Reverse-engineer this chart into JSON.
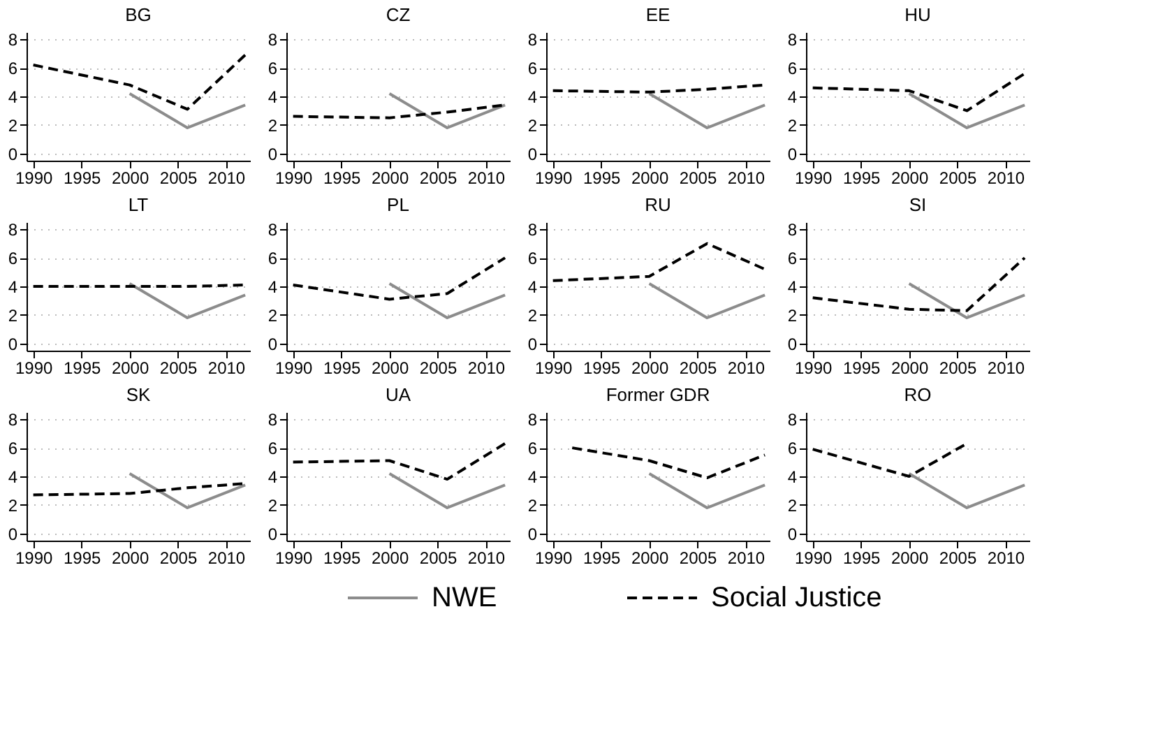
{
  "chart_data": [
    {
      "type": "line",
      "title": "BG",
      "legend": "bottom",
      "grid": "y",
      "xlim": [
        1989.3,
        2012.5
      ],
      "xticks": [
        1990,
        1995,
        2000,
        2005,
        2010
      ],
      "ylim": [
        -0.5,
        8.5
      ],
      "yticks": [
        0,
        2,
        4,
        6,
        8
      ],
      "series": [
        {
          "name": "NWE",
          "color": "#8c8c8c",
          "line_style": "solid",
          "x": [
            2000,
            2006,
            2012
          ],
          "values": [
            4.2,
            1.8,
            3.4
          ]
        },
        {
          "name": "Social Justice",
          "color": "#000000",
          "line_style": "dashed",
          "x": [
            1990,
            2000,
            2006,
            2012
          ],
          "values": [
            6.2,
            4.8,
            3.1,
            6.9
          ]
        }
      ]
    },
    {
      "type": "line",
      "title": "CZ",
      "grid": "y",
      "xlim": [
        1989.3,
        2012.5
      ],
      "xticks": [
        1990,
        1995,
        2000,
        2005,
        2010
      ],
      "ylim": [
        -0.5,
        8.5
      ],
      "yticks": [
        0,
        2,
        4,
        6,
        8
      ],
      "series": [
        {
          "color": "#8c8c8c",
          "line_style": "solid",
          "x": [
            2000,
            2006,
            2012
          ],
          "values": [
            4.2,
            1.8,
            3.4
          ]
        },
        {
          "color": "#000000",
          "line_style": "dashed",
          "x": [
            1990,
            2000,
            2006,
            2012
          ],
          "values": [
            2.6,
            2.5,
            2.9,
            3.4
          ]
        }
      ]
    },
    {
      "type": "line",
      "title": "EE",
      "grid": "y",
      "xlim": [
        1989.3,
        2012.5
      ],
      "xticks": [
        1990,
        1995,
        2000,
        2005,
        2010
      ],
      "ylim": [
        -0.5,
        8.5
      ],
      "yticks": [
        0,
        2,
        4,
        6,
        8
      ],
      "series": [
        {
          "color": "#8c8c8c",
          "line_style": "solid",
          "x": [
            2000,
            2006,
            2012
          ],
          "values": [
            4.2,
            1.8,
            3.4
          ]
        },
        {
          "color": "#000000",
          "line_style": "dashed",
          "x": [
            1990,
            2000,
            2006,
            2012
          ],
          "values": [
            4.4,
            4.3,
            4.5,
            4.8
          ]
        }
      ]
    },
    {
      "type": "line",
      "title": "HU",
      "grid": "y",
      "xlim": [
        1989.3,
        2012.5
      ],
      "xticks": [
        1990,
        1995,
        2000,
        2005,
        2010
      ],
      "ylim": [
        -0.5,
        8.5
      ],
      "yticks": [
        0,
        2,
        4,
        6,
        8
      ],
      "series": [
        {
          "color": "#8c8c8c",
          "line_style": "solid",
          "x": [
            2000,
            2006,
            2012
          ],
          "values": [
            4.2,
            1.8,
            3.4
          ]
        },
        {
          "color": "#000000",
          "line_style": "dashed",
          "x": [
            1990,
            2000,
            2006,
            2012
          ],
          "values": [
            4.6,
            4.4,
            3.0,
            5.6
          ]
        }
      ]
    },
    {
      "type": "line",
      "title": "LT",
      "grid": "y",
      "xlim": [
        1989.3,
        2012.5
      ],
      "xticks": [
        1990,
        1995,
        2000,
        2005,
        2010
      ],
      "ylim": [
        -0.5,
        8.5
      ],
      "yticks": [
        0,
        2,
        4,
        6,
        8
      ],
      "series": [
        {
          "color": "#8c8c8c",
          "line_style": "solid",
          "x": [
            2000,
            2006,
            2012
          ],
          "values": [
            4.2,
            1.8,
            3.4
          ]
        },
        {
          "color": "#000000",
          "line_style": "dashed",
          "x": [
            1990,
            2000,
            2006,
            2012
          ],
          "values": [
            4.0,
            4.0,
            4.0,
            4.1
          ]
        }
      ]
    },
    {
      "type": "line",
      "title": "PL",
      "grid": "y",
      "xlim": [
        1989.3,
        2012.5
      ],
      "xticks": [
        1990,
        1995,
        2000,
        2005,
        2010
      ],
      "ylim": [
        -0.5,
        8.5
      ],
      "yticks": [
        0,
        2,
        4,
        6,
        8
      ],
      "series": [
        {
          "color": "#8c8c8c",
          "line_style": "solid",
          "x": [
            2000,
            2006,
            2012
          ],
          "values": [
            4.2,
            1.8,
            3.4
          ]
        },
        {
          "color": "#000000",
          "line_style": "dashed",
          "x": [
            1990,
            2000,
            2006,
            2012
          ],
          "values": [
            4.1,
            3.1,
            3.5,
            6.0
          ]
        }
      ]
    },
    {
      "type": "line",
      "title": "RU",
      "grid": "y",
      "xlim": [
        1989.3,
        2012.5
      ],
      "xticks": [
        1990,
        1995,
        2000,
        2005,
        2010
      ],
      "ylim": [
        -0.5,
        8.5
      ],
      "yticks": [
        0,
        2,
        4,
        6,
        8
      ],
      "series": [
        {
          "color": "#8c8c8c",
          "line_style": "solid",
          "x": [
            2000,
            2006,
            2012
          ],
          "values": [
            4.2,
            1.8,
            3.4
          ]
        },
        {
          "color": "#000000",
          "line_style": "dashed",
          "x": [
            1990,
            2000,
            2006,
            2012
          ],
          "values": [
            4.4,
            4.7,
            7.0,
            5.2
          ]
        }
      ]
    },
    {
      "type": "line",
      "title": "SI",
      "grid": "y",
      "xlim": [
        1989.3,
        2012.5
      ],
      "xticks": [
        1990,
        1995,
        2000,
        2005,
        2010
      ],
      "ylim": [
        -0.5,
        8.5
      ],
      "yticks": [
        0,
        2,
        4,
        6,
        8
      ],
      "series": [
        {
          "color": "#8c8c8c",
          "line_style": "solid",
          "x": [
            2000,
            2006,
            2012
          ],
          "values": [
            4.2,
            1.8,
            3.4
          ]
        },
        {
          "color": "#000000",
          "line_style": "dashed",
          "x": [
            1990,
            2000,
            2006,
            2012
          ],
          "values": [
            3.2,
            2.4,
            2.3,
            6.0
          ]
        }
      ]
    },
    {
      "type": "line",
      "title": "SK",
      "grid": "y",
      "xlim": [
        1989.3,
        2012.5
      ],
      "xticks": [
        1990,
        1995,
        2000,
        2005,
        2010
      ],
      "ylim": [
        -0.5,
        8.5
      ],
      "yticks": [
        0,
        2,
        4,
        6,
        8
      ],
      "series": [
        {
          "color": "#8c8c8c",
          "line_style": "solid",
          "x": [
            2000,
            2006,
            2012
          ],
          "values": [
            4.2,
            1.8,
            3.4
          ]
        },
        {
          "color": "#000000",
          "line_style": "dashed",
          "x": [
            1990,
            2000,
            2006,
            2012
          ],
          "values": [
            2.7,
            2.8,
            3.2,
            3.5
          ]
        }
      ]
    },
    {
      "type": "line",
      "title": "UA",
      "grid": "y",
      "xlim": [
        1989.3,
        2012.5
      ],
      "xticks": [
        1990,
        1995,
        2000,
        2005,
        2010
      ],
      "ylim": [
        -0.5,
        8.5
      ],
      "yticks": [
        0,
        2,
        4,
        6,
        8
      ],
      "series": [
        {
          "color": "#8c8c8c",
          "line_style": "solid",
          "x": [
            2000,
            2006,
            2012
          ],
          "values": [
            4.2,
            1.8,
            3.4
          ]
        },
        {
          "color": "#000000",
          "line_style": "dashed",
          "x": [
            1990,
            2000,
            2006,
            2012
          ],
          "values": [
            5.0,
            5.1,
            3.8,
            6.3
          ]
        }
      ]
    },
    {
      "type": "line",
      "title": "Former GDR",
      "grid": "y",
      "xlim": [
        1989.3,
        2012.5
      ],
      "xticks": [
        1990,
        1995,
        2000,
        2005,
        2010
      ],
      "ylim": [
        -0.5,
        8.5
      ],
      "yticks": [
        0,
        2,
        4,
        6,
        8
      ],
      "series": [
        {
          "color": "#8c8c8c",
          "line_style": "solid",
          "x": [
            2000,
            2006,
            2012
          ],
          "values": [
            4.2,
            1.8,
            3.4
          ]
        },
        {
          "color": "#000000",
          "line_style": "dashed",
          "x": [
            1992,
            2000,
            2006,
            2012
          ],
          "values": [
            6.0,
            5.1,
            3.9,
            5.5
          ]
        }
      ]
    },
    {
      "type": "line",
      "title": "RO",
      "grid": "y",
      "xlim": [
        1989.3,
        2012.5
      ],
      "xticks": [
        1990,
        1995,
        2000,
        2005,
        2010
      ],
      "ylim": [
        -0.5,
        8.5
      ],
      "yticks": [
        0,
        2,
        4,
        6,
        8
      ],
      "series": [
        {
          "color": "#8c8c8c",
          "line_style": "solid",
          "x": [
            2000,
            2006,
            2012
          ],
          "values": [
            4.2,
            1.8,
            3.4
          ]
        },
        {
          "color": "#000000",
          "line_style": "dashed",
          "x": [
            1990,
            2000,
            2006
          ],
          "values": [
            5.9,
            4.0,
            6.3
          ]
        }
      ]
    }
  ]
}
